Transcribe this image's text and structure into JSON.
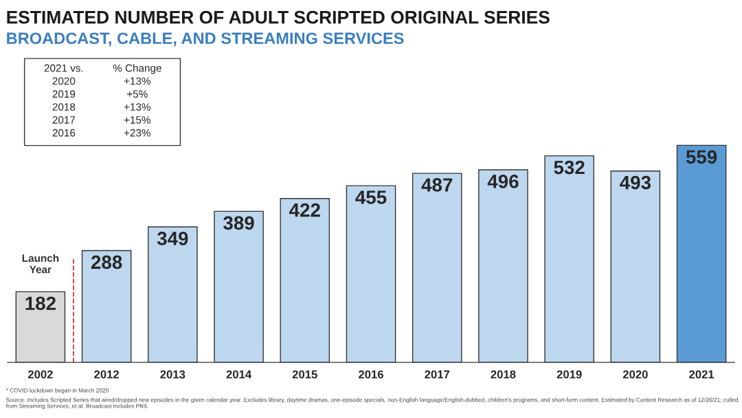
{
  "chart_data": {
    "type": "bar",
    "title": "ESTIMATED NUMBER OF ADULT SCRIPTED ORIGINAL SERIES",
    "subtitle": "BROADCAST, CABLE, AND STREAMING SERVICES",
    "categories": [
      "2002",
      "2012",
      "2013",
      "2014",
      "2015",
      "2016",
      "2017",
      "2018",
      "2019",
      "2020",
      "2021"
    ],
    "values": [
      182,
      288,
      349,
      389,
      422,
      455,
      487,
      496,
      532,
      493,
      559
    ],
    "colors": [
      "#d9d9d9",
      "#bdd7ee",
      "#bdd7ee",
      "#bdd7ee",
      "#bdd7ee",
      "#bdd7ee",
      "#bdd7ee",
      "#bdd7ee",
      "#bdd7ee",
      "#bdd7ee",
      "#5b9bd5"
    ],
    "data_labels": true,
    "grid": false,
    "legend": false,
    "annotations": [
      "2021 vs.",
      "% Change",
      "2020",
      "+13%",
      "2019",
      "+5%",
      "2018",
      "+13%",
      "2017",
      "+15%",
      "2016",
      "+23%",
      "Launch\nYear",
      "* COVID lockdown began in March 2020",
      "Source: Includes Scripted Series that aired/dropped new episodes in the given calendar year. Excludes library, daytime dramas, one-episode specials, non-English language/English-dubbed, children's programs, and short-form content. Estimated by Content Research as of 12/26/21; culled from Streaming Services, et al. Broadcast includes PBS."
    ]
  }
}
